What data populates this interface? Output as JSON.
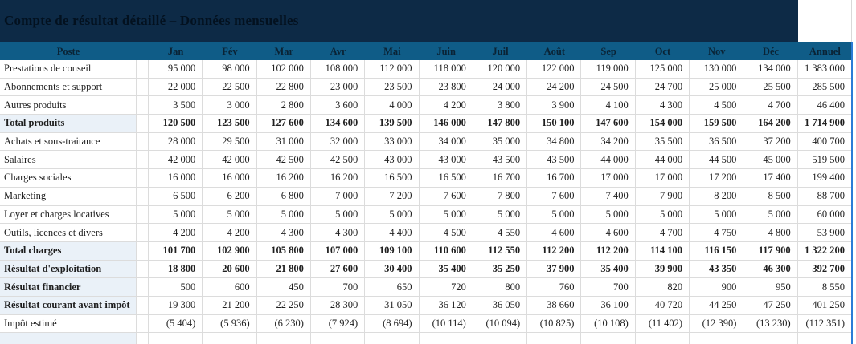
{
  "title": "Compte de résultat détaillé – Données mensuelles",
  "colors": {
    "title_background": "#0D2A46",
    "title_text": "#03111F",
    "header_background": "#0F5C87",
    "header_text": "#0A2335",
    "highlight_row_background": "#EAF1F8",
    "gridline": "#DCDCDC",
    "selection_border": "#2B7CD6",
    "body_text": "#1F1F1F"
  },
  "table": {
    "columns": [
      "Poste",
      "Jan",
      "Fév",
      "Mar",
      "Avr",
      "Mai",
      "Juin",
      "Juil",
      "Août",
      "Sep",
      "Oct",
      "Nov",
      "Déc",
      "Annuel"
    ],
    "rows": [
      {
        "label": "Prestations de conseil",
        "style": "normal",
        "values": [
          "95 000",
          "98 000",
          "102 000",
          "108 000",
          "112 000",
          "118 000",
          "120 000",
          "122 000",
          "119 000",
          "125 000",
          "130 000",
          "134 000",
          "1 383 000"
        ]
      },
      {
        "label": "Abonnements et support",
        "style": "normal",
        "values": [
          "22 000",
          "22 500",
          "22 800",
          "23 000",
          "23 500",
          "23 800",
          "24 000",
          "24 200",
          "24 500",
          "24 700",
          "25 000",
          "25 500",
          "285 500"
        ]
      },
      {
        "label": "Autres produits",
        "style": "normal",
        "values": [
          "3 500",
          "3 000",
          "2 800",
          "3 600",
          "4 000",
          "4 200",
          "3 800",
          "3 900",
          "4 100",
          "4 300",
          "4 500",
          "4 700",
          "46 400"
        ]
      },
      {
        "label": "Total produits",
        "style": "total",
        "values": [
          "120 500",
          "123 500",
          "127 600",
          "134 600",
          "139 500",
          "146 000",
          "147 800",
          "150 100",
          "147 600",
          "154 000",
          "159 500",
          "164 200",
          "1 714 900"
        ]
      },
      {
        "label": "Achats et sous-traitance",
        "style": "normal",
        "values": [
          "28 000",
          "29 500",
          "31 000",
          "32 000",
          "33 000",
          "34 000",
          "35 000",
          "34 800",
          "34 200",
          "35 500",
          "36 500",
          "37 200",
          "400 700"
        ]
      },
      {
        "label": "Salaires",
        "style": "normal",
        "values": [
          "42 000",
          "42 000",
          "42 500",
          "42 500",
          "43 000",
          "43 000",
          "43 500",
          "43 500",
          "44 000",
          "44 000",
          "44 500",
          "45 000",
          "519 500"
        ]
      },
      {
        "label": "Charges sociales",
        "style": "normal",
        "values": [
          "16 000",
          "16 000",
          "16 200",
          "16 200",
          "16 500",
          "16 500",
          "16 700",
          "16 700",
          "17 000",
          "17 000",
          "17 200",
          "17 400",
          "199 400"
        ]
      },
      {
        "label": "Marketing",
        "style": "normal",
        "values": [
          "6 500",
          "6 200",
          "6 800",
          "7 000",
          "7 200",
          "7 600",
          "7 800",
          "7 600",
          "7 400",
          "7 900",
          "8 200",
          "8 500",
          "88 700"
        ]
      },
      {
        "label": "Loyer et charges locatives",
        "style": "normal",
        "values": [
          "5 000",
          "5 000",
          "5 000",
          "5 000",
          "5 000",
          "5 000",
          "5 000",
          "5 000",
          "5 000",
          "5 000",
          "5 000",
          "5 000",
          "60 000"
        ]
      },
      {
        "label": "Outils, licences et divers",
        "style": "normal",
        "values": [
          "4 200",
          "4 200",
          "4 300",
          "4 300",
          "4 400",
          "4 500",
          "4 550",
          "4 600",
          "4 600",
          "4 700",
          "4 750",
          "4 800",
          "53 900"
        ]
      },
      {
        "label": "Total charges",
        "style": "total",
        "values": [
          "101 700",
          "102 900",
          "105 800",
          "107 000",
          "109 100",
          "110 600",
          "112 550",
          "112 200",
          "112 200",
          "114 100",
          "116 150",
          "117 900",
          "1 322 200"
        ]
      },
      {
        "label": "Résultat d'exploitation",
        "style": "total",
        "values": [
          "18 800",
          "20 600",
          "21 800",
          "27 600",
          "30 400",
          "35 400",
          "35 250",
          "37 900",
          "35 400",
          "39 900",
          "43 350",
          "46 300",
          "392 700"
        ]
      },
      {
        "label": "Résultat financier",
        "style": "semi",
        "values": [
          "500",
          "600",
          "450",
          "700",
          "650",
          "720",
          "800",
          "760",
          "700",
          "820",
          "900",
          "950",
          "8 550"
        ]
      },
      {
        "label": "Résultat courant avant impôt",
        "style": "semi",
        "values": [
          "19 300",
          "21 200",
          "22 250",
          "28 300",
          "31 050",
          "36 120",
          "36 050",
          "38 660",
          "36 100",
          "40 720",
          "44 250",
          "47 250",
          "401 250"
        ]
      },
      {
        "label": "Impôt estimé",
        "style": "normal",
        "values": [
          "(5 404)",
          "(5 936)",
          "(6 230)",
          "(7 924)",
          "(8 694)",
          "(10 114)",
          "(10 094)",
          "(10 825)",
          "(10 108)",
          "(11 402)",
          "(12 390)",
          "(13 230)",
          "(112 351)"
        ]
      }
    ]
  }
}
